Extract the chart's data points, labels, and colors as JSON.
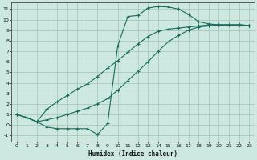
{
  "xlabel": "Humidex (Indice chaleur)",
  "bg_color": "#cce8e0",
  "line_color": "#1a6b5a",
  "xlim": [
    -0.5,
    23.5
  ],
  "ylim": [
    -1.6,
    11.6
  ],
  "xticks": [
    0,
    1,
    2,
    3,
    4,
    5,
    6,
    7,
    8,
    9,
    10,
    11,
    12,
    13,
    14,
    15,
    16,
    17,
    18,
    19,
    20,
    21,
    22,
    23
  ],
  "yticks": [
    -1,
    0,
    1,
    2,
    3,
    4,
    5,
    6,
    7,
    8,
    9,
    10,
    11
  ],
  "line1_x": [
    0,
    1,
    2,
    3,
    4,
    5,
    6,
    7,
    8,
    9,
    10,
    11,
    12,
    13,
    14,
    15,
    16,
    17,
    18,
    19,
    20,
    21,
    22,
    23
  ],
  "line1_y": [
    1.0,
    0.7,
    0.3,
    -0.2,
    -0.35,
    -0.35,
    -0.35,
    -0.35,
    -0.9,
    0.15,
    7.5,
    10.3,
    10.4,
    11.1,
    11.25,
    11.2,
    11.0,
    10.5,
    9.8,
    9.6,
    9.5,
    9.5,
    9.5,
    9.45
  ],
  "line2_x": [
    0,
    1,
    2,
    3,
    4,
    5,
    6,
    7,
    8,
    9,
    10,
    11,
    12,
    13,
    14,
    15,
    16,
    17,
    18,
    19,
    20,
    21,
    22,
    23
  ],
  "line2_y": [
    1.0,
    0.7,
    0.3,
    0.5,
    0.7,
    1.0,
    1.3,
    1.6,
    2.0,
    2.5,
    3.3,
    4.2,
    5.1,
    6.0,
    7.0,
    7.9,
    8.5,
    9.0,
    9.3,
    9.4,
    9.5,
    9.5,
    9.5,
    9.45
  ],
  "line3_x": [
    0,
    1,
    2,
    3,
    4,
    5,
    6,
    7,
    8,
    9,
    10,
    11,
    12,
    13,
    14,
    15,
    16,
    17,
    18,
    19,
    20,
    21,
    22,
    23
  ],
  "line3_y": [
    1.0,
    0.7,
    0.3,
    1.5,
    2.2,
    2.8,
    3.4,
    3.9,
    4.6,
    5.4,
    6.1,
    6.9,
    7.7,
    8.4,
    8.9,
    9.1,
    9.2,
    9.3,
    9.4,
    9.5,
    9.5,
    9.5,
    9.5,
    9.45
  ]
}
